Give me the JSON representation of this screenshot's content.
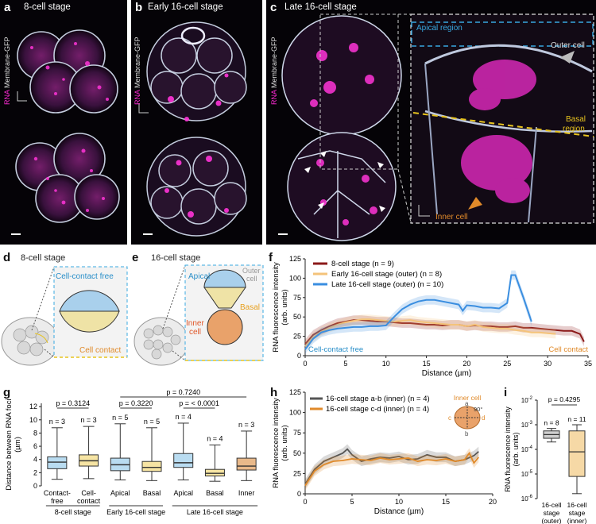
{
  "colors": {
    "magenta": "#e428c8",
    "membrane": "#c9d3e6",
    "dark_red": "#8b1a1a",
    "light_orange": "#f4c37a",
    "blue": "#3a8ee0",
    "cyan_dash": "#38a8e0",
    "yellow_dash": "#e7c31f",
    "orange": "#e08a2a",
    "gray_line": "#555555"
  },
  "panel_a": {
    "letter": "a",
    "title": "8-cell stage",
    "ylabel_rna": "RNA",
    "ylabel_membrane": "Membrane-GFP"
  },
  "panel_b": {
    "letter": "b",
    "title": "Early 16-cell stage",
    "ylabel_rna": "RNA",
    "ylabel_membrane": "Membrane-GFP"
  },
  "panel_c": {
    "letter": "c",
    "title": "Late 16-cell stage",
    "ylabel_rna": "RNA",
    "ylabel_membrane": "Membrane-GFP",
    "zoom_labels": {
      "apical": "Apical region",
      "outer": "Outer cell",
      "basal_1": "Basal",
      "basal_2": "region",
      "inner": "Inner cell"
    }
  },
  "panel_d": {
    "letter": "d",
    "title": "8-cell stage",
    "cell_contact_free": "Cell-contact free",
    "cell_contact": "Cell contact"
  },
  "panel_e": {
    "letter": "e",
    "title": "16-cell stage",
    "apical": "Apical",
    "outer_1": "Outer",
    "outer_2": "cell",
    "basal": "Basal",
    "inner_1": "Inner",
    "inner_2": "cell"
  },
  "chart_data": [
    {
      "id": "f",
      "type": "line",
      "xlabel": "Distance (µm)",
      "ylabel_1": "RNA fluorescence intensity",
      "ylabel_2": "(arb. units)",
      "xlim": [
        0,
        35
      ],
      "ylim": [
        0,
        125
      ],
      "xticks": [
        0,
        5,
        10,
        15,
        20,
        25,
        30,
        35
      ],
      "yticks": [
        0,
        25,
        50,
        75,
        100,
        125
      ],
      "left_annotation": "Cell-contact free",
      "right_annotation": "Cell contact",
      "series": [
        {
          "name": "8-cell stage (n = 9)",
          "color": "#8b1a1a",
          "x": [
            0,
            1,
            2,
            3,
            4,
            5,
            6,
            7,
            8,
            9,
            10,
            11,
            12,
            13,
            14,
            15,
            16,
            17,
            18,
            19,
            20,
            21,
            22,
            23,
            24,
            25,
            26,
            27,
            28,
            29,
            30,
            31,
            32,
            33,
            34,
            34.5
          ],
          "y": [
            15,
            27,
            33,
            38,
            42,
            44,
            46,
            46,
            45,
            44,
            44,
            43,
            42,
            42,
            41,
            40,
            40,
            39,
            40,
            40,
            38,
            39,
            38,
            38,
            37,
            37,
            38,
            36,
            36,
            35,
            34,
            33,
            32,
            32,
            28,
            18
          ]
        },
        {
          "name": "Early 16-cell stage (outer) (n = 8)",
          "color": "#f4c37a",
          "x": [
            0,
            1,
            2,
            3,
            4,
            5,
            6,
            7,
            8,
            9,
            10,
            11,
            12,
            13,
            14,
            15,
            16,
            17,
            18,
            19,
            20,
            21,
            22,
            23,
            24,
            25,
            26,
            27,
            28,
            29,
            30,
            31
          ],
          "y": [
            12,
            24,
            31,
            36,
            40,
            43,
            45,
            47,
            47,
            46,
            45,
            44,
            45,
            46,
            44,
            43,
            42,
            41,
            40,
            40,
            38,
            40,
            37,
            36,
            35,
            35,
            33,
            32,
            30,
            30,
            29,
            28
          ]
        },
        {
          "name": "Late 16-cell stage (outer) (n = 10)",
          "color": "#3a8ee0",
          "x": [
            0,
            1,
            2,
            3,
            4,
            5,
            6,
            7,
            8,
            9,
            10,
            11,
            12,
            13,
            14,
            15,
            16,
            17,
            18,
            19,
            19.5,
            20,
            21,
            22,
            23,
            24,
            25,
            25.5,
            26,
            27,
            28
          ],
          "y": [
            8,
            22,
            30,
            33,
            35,
            36,
            37,
            37,
            38,
            38,
            39,
            50,
            60,
            66,
            70,
            72,
            72,
            70,
            68,
            66,
            58,
            65,
            64,
            62,
            62,
            61,
            68,
            104,
            104,
            75,
            44
          ]
        }
      ]
    },
    {
      "id": "g",
      "type": "box",
      "ylabel_1": "Distance between RNA foci",
      "ylabel_2": "(µm)",
      "ylim": [
        0,
        12.5
      ],
      "yticks": [
        0,
        2,
        4,
        6,
        8,
        10,
        12
      ],
      "groups": [
        "8-cell stage",
        "Early 16-cell stage",
        "Late 16-cell stage"
      ],
      "boxes": [
        {
          "label_1": "Contact-",
          "label_2": "free",
          "n": "n = 3",
          "min": 1.0,
          "q1": 2.6,
          "median": 3.6,
          "q3": 4.4,
          "max": 8.8,
          "color": "#b9dcf1"
        },
        {
          "label_1": "Cell-",
          "label_2": "contact",
          "n": "n = 3",
          "min": 1.1,
          "q1": 3.0,
          "median": 3.8,
          "q3": 4.7,
          "max": 9.0,
          "color": "#f6e4a3"
        },
        {
          "label_1": "Apical",
          "label_2": "",
          "n": "n = 5",
          "min": 0.9,
          "q1": 2.3,
          "median": 3.2,
          "q3": 4.2,
          "max": 9.4,
          "color": "#b9dcf1"
        },
        {
          "label_1": "Basal",
          "label_2": "",
          "n": "n = 5",
          "min": 0.8,
          "q1": 2.2,
          "median": 2.8,
          "q3": 3.7,
          "max": 8.8,
          "color": "#f6e4a3"
        },
        {
          "label_1": "Apical",
          "label_2": "",
          "n": "n = 4",
          "min": 0.9,
          "q1": 2.8,
          "median": 3.5,
          "q3": 4.9,
          "max": 9.5,
          "color": "#b9dcf1"
        },
        {
          "label_1": "Basal",
          "label_2": "",
          "n": "n = 4",
          "min": 0.7,
          "q1": 1.5,
          "median": 1.9,
          "q3": 2.5,
          "max": 6.2,
          "color": "#f6e4a3"
        },
        {
          "label_1": "Inner",
          "label_2": "",
          "n": "n = 3",
          "min": 0.8,
          "q1": 2.4,
          "median": 3.0,
          "q3": 4.2,
          "max": 8.3,
          "color": "#e9b98a"
        }
      ],
      "comparisons": [
        {
          "text": "p = 0.3124"
        },
        {
          "text": "p = 0.3220"
        },
        {
          "text": "p = < 0.0001"
        },
        {
          "text": "p = 0.7240"
        }
      ]
    },
    {
      "id": "h",
      "type": "line",
      "xlabel": "Distance (µm)",
      "ylabel_1": "RNA fluorescence intensity",
      "ylabel_2": "(arb. units)",
      "xlim": [
        0,
        20
      ],
      "ylim": [
        0,
        125
      ],
      "xticks": [
        0,
        5,
        10,
        15,
        20
      ],
      "yticks": [
        0,
        25,
        50,
        75,
        100,
        125
      ],
      "inset": {
        "title": "Inner cell",
        "a": "a",
        "b": "b",
        "c": "c",
        "d": "d",
        "angle": "90°"
      },
      "series": [
        {
          "name": "16-cell stage a-b (inner) (n = 4)",
          "color": "#555555",
          "x": [
            0,
            1,
            2,
            3,
            4,
            4.5,
            5,
            6,
            7,
            8,
            9,
            10,
            11,
            12,
            13,
            14,
            15,
            16,
            17,
            18,
            18.5
          ],
          "y": [
            12,
            30,
            40,
            45,
            50,
            55,
            48,
            40,
            43,
            45,
            44,
            46,
            42,
            43,
            48,
            45,
            45,
            40,
            42,
            47,
            52
          ]
        },
        {
          "name": "16-cell stage c-d (inner) (n = 4)",
          "color": "#e08a2a",
          "x": [
            0,
            1,
            2,
            3,
            4,
            5,
            6,
            7,
            8,
            9,
            10,
            11,
            12,
            13,
            14,
            15,
            16,
            17,
            17.5,
            18,
            18.5
          ],
          "y": [
            10,
            28,
            36,
            40,
            41,
            43,
            42,
            41,
            44,
            42,
            43,
            44,
            40,
            42,
            41,
            43,
            40,
            42,
            50,
            38,
            45
          ]
        }
      ]
    },
    {
      "id": "i",
      "type": "box",
      "ylabel_1": "RNA fluorescence intensity",
      "ylabel_2": "(arb. units)",
      "yscale": "log",
      "ytick_exponents": [
        -6,
        -5,
        -4,
        -3,
        -2
      ],
      "p_value": "p = 0.4295",
      "boxes": [
        {
          "label_1": "16-cell",
          "label_2": "stage",
          "label_3": "(outer)",
          "n": "n = 8",
          "min_exp": -3.7,
          "q1_exp": -3.55,
          "median_exp": -3.4,
          "q3_exp": -3.25,
          "max_exp": -3.15,
          "color": "#cfcfcf"
        },
        {
          "label_1": "16-cell",
          "label_2": "stage",
          "label_3": "(inner)",
          "n": "n = 11",
          "min_exp": -5.8,
          "q1_exp": -5.1,
          "median_exp": -4.1,
          "q3_exp": -3.25,
          "max_exp": -3.0,
          "color": "#f6d9a6"
        }
      ]
    }
  ]
}
